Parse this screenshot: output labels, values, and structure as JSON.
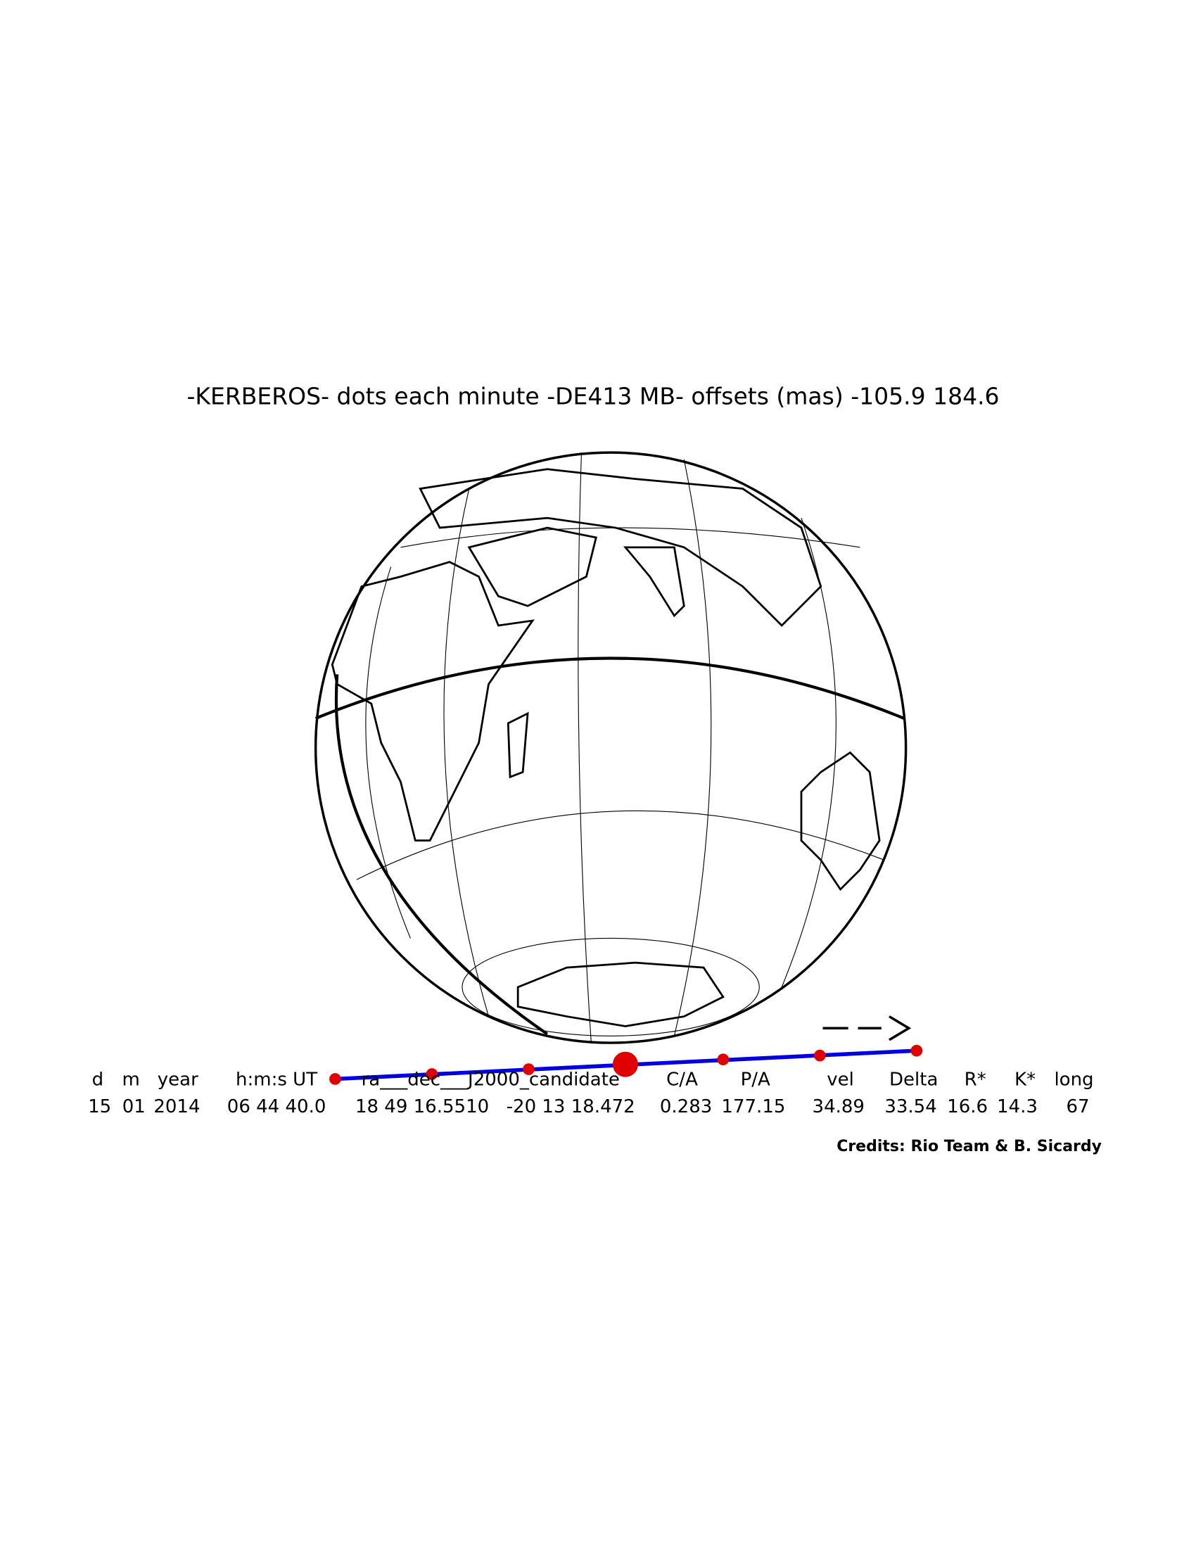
{
  "title": "-KERBEROS-  dots each minute  -DE413 MB-  offsets (mas)  -105.9   184.6",
  "table": {
    "headers": [
      "d",
      "m",
      "year",
      "h:m:s UT",
      "ra___dec___J2000_candidate",
      "C/A",
      "P/A",
      "vel",
      "Delta",
      "R*",
      "K*",
      "long"
    ],
    "values": [
      "15",
      "01",
      "2014",
      "06 44 40.0",
      "18 49 16.5510",
      "-20 13 18.472",
      "0.283",
      "177.15",
      "34.89",
      "33.54",
      "16.6",
      "14.3",
      "67"
    ]
  },
  "credits": "Credits: Rio Team & B. Sicardy"
}
